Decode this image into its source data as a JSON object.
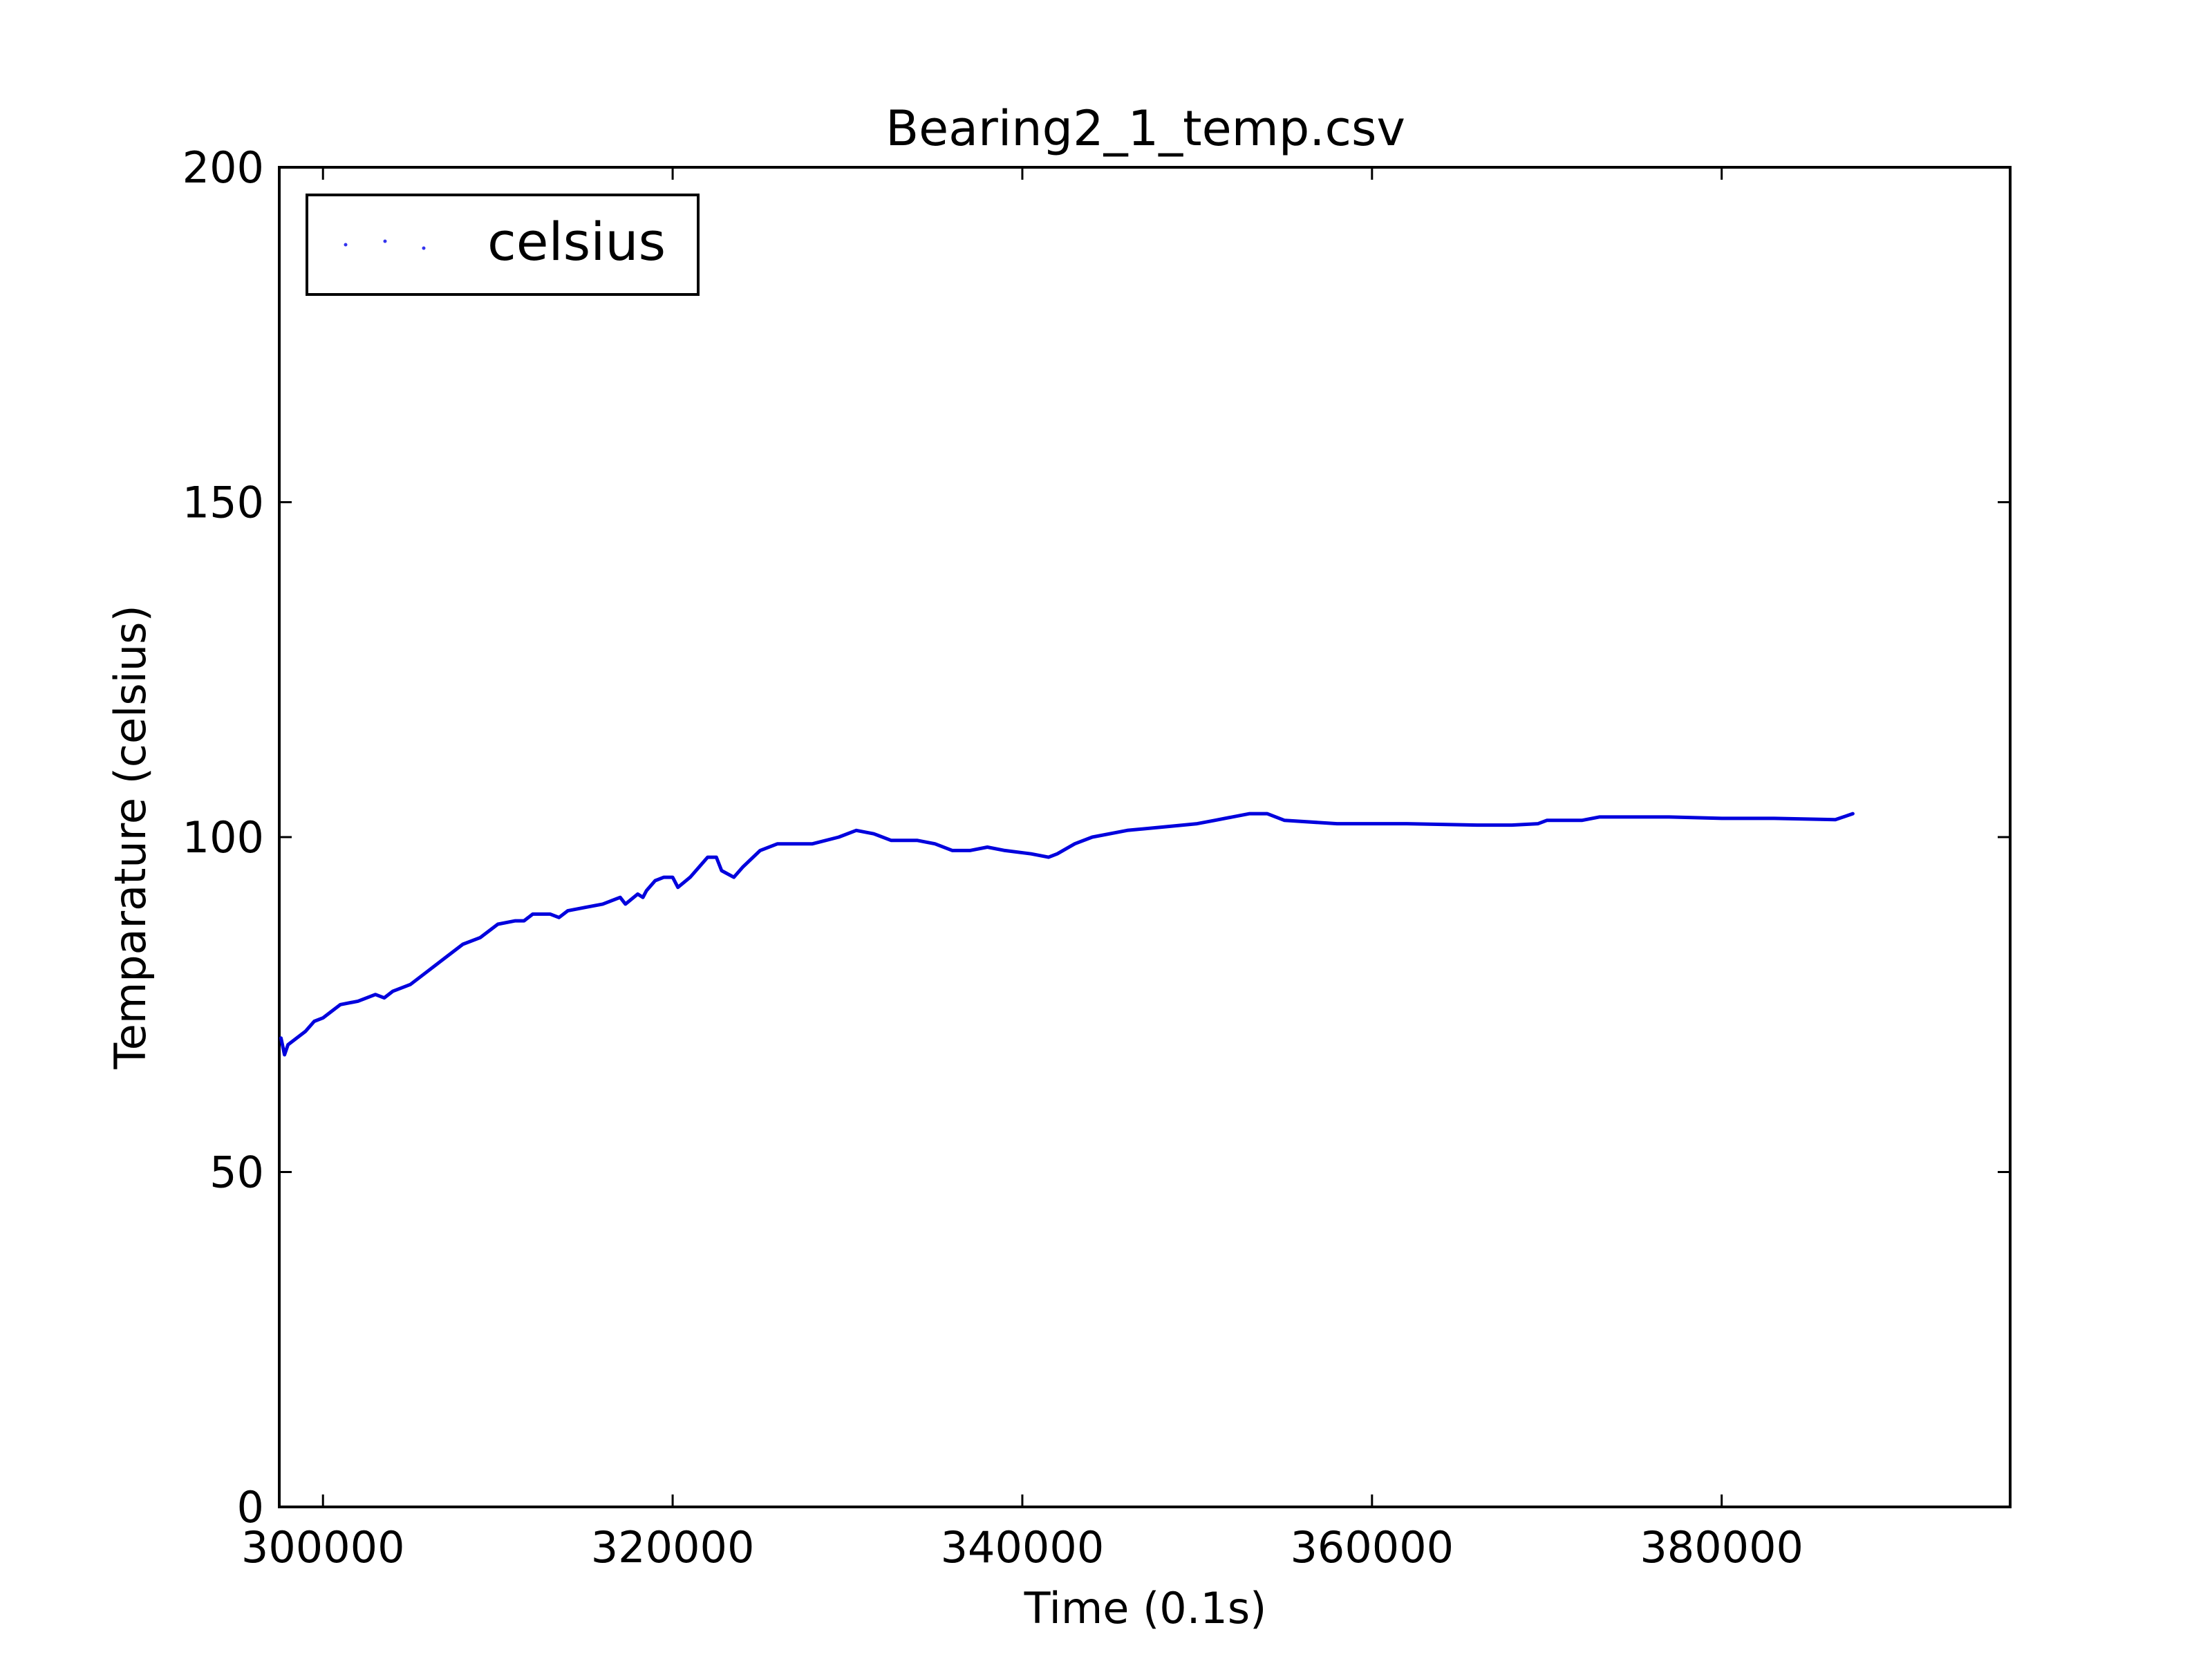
{
  "chart_data": {
    "type": "line",
    "title": "Bearing2_1_temp.csv",
    "xlabel": "Time (0.1s)",
    "ylabel": "Temparature (celsius)",
    "xlim": [
      297500,
      396500
    ],
    "ylim": [
      0,
      200
    ],
    "x_ticks": [
      300000,
      320000,
      340000,
      360000,
      380000
    ],
    "x_tick_labels": [
      "300000",
      "320000",
      "340000",
      "360000",
      "380000"
    ],
    "y_ticks": [
      0,
      50,
      100,
      150,
      200
    ],
    "y_tick_labels": [
      "0",
      "50",
      "100",
      "150",
      "200"
    ],
    "grid": false,
    "legend": {
      "position": "top-left",
      "entries": [
        "celsius"
      ]
    },
    "series": [
      {
        "name": "celsius",
        "color": "#0000dd",
        "x": [
          297600,
          297800,
          298000,
          299000,
          299500,
          300000,
          300500,
          301000,
          302000,
          303000,
          303500,
          304000,
          305000,
          306000,
          307000,
          308000,
          309000,
          310000,
          311000,
          311500,
          312000,
          313000,
          313500,
          314000,
          315000,
          316000,
          317000,
          317300,
          318000,
          318300,
          318500,
          319000,
          319500,
          320000,
          320300,
          321000,
          322000,
          322500,
          322800,
          323500,
          324000,
          325000,
          326000,
          328000,
          329500,
          330500,
          331500,
          332500,
          334000,
          335000,
          336000,
          337000,
          338000,
          339000,
          340500,
          341500,
          342000,
          343000,
          344000,
          346000,
          348000,
          350000,
          351000,
          352000,
          353000,
          354000,
          355000,
          358000,
          362000,
          366000,
          368000,
          369500,
          370000,
          372000,
          373000,
          375000,
          377000,
          380000,
          383000,
          386500,
          387500
        ],
        "values": [
          70,
          67.5,
          69,
          71,
          72.5,
          73,
          74,
          75,
          75.5,
          76.5,
          76,
          77,
          78,
          80,
          82,
          84,
          85,
          87,
          87.5,
          87.5,
          88.5,
          88.5,
          88,
          89,
          89.5,
          90,
          91,
          90,
          91.5,
          91,
          92,
          93.5,
          94,
          94,
          92.5,
          94,
          97,
          97,
          95,
          94,
          95.5,
          98,
          99,
          99,
          100,
          101,
          100.5,
          99.5,
          99.5,
          99,
          98,
          98,
          98.5,
          98,
          97.5,
          97,
          97.5,
          99,
          100,
          101,
          101.5,
          102,
          102.5,
          103,
          103.5,
          103.5,
          102.5,
          102,
          102,
          101.8,
          101.8,
          102,
          102.5,
          102.5,
          103,
          103,
          103,
          102.8,
          102.8,
          102.6,
          103.5
        ]
      }
    ]
  }
}
